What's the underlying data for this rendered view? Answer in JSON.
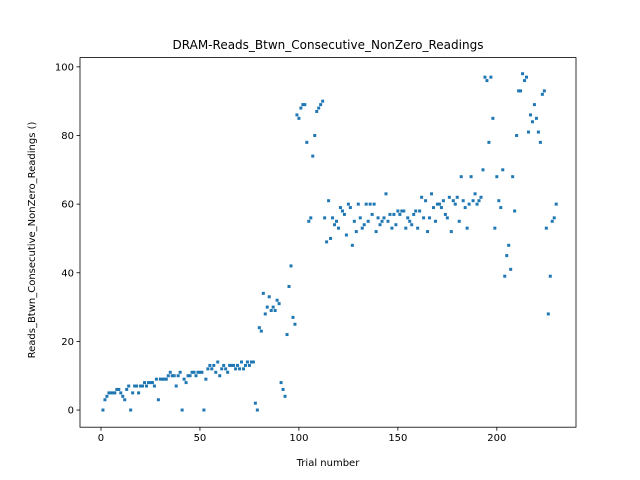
{
  "chart_data": {
    "type": "scatter",
    "title": "DRAM-Reads_Btwn_Consecutive_NonZero_Readings",
    "x_label": "Trial number",
    "y_label": "Reads_Btwn_Consecutive_NonZero_Readings ()",
    "color": "#1f77b4",
    "x": [
      1,
      2,
      3,
      4,
      5,
      6,
      7,
      8,
      9,
      10,
      11,
      12,
      13,
      14,
      15,
      16,
      17,
      18,
      19,
      20,
      21,
      22,
      23,
      24,
      25,
      26,
      27,
      28,
      29,
      30,
      31,
      32,
      33,
      34,
      35,
      36,
      37,
      38,
      39,
      40,
      41,
      42,
      43,
      44,
      45,
      46,
      47,
      48,
      49,
      50,
      51,
      52,
      53,
      54,
      55,
      56,
      57,
      58,
      59,
      60,
      61,
      62,
      63,
      64,
      65,
      66,
      67,
      68,
      69,
      70,
      71,
      72,
      73,
      74,
      75,
      76,
      77,
      78,
      79,
      80,
      81,
      82,
      83,
      84,
      85,
      86,
      87,
      88,
      89,
      90,
      91,
      92,
      93,
      94,
      95,
      96,
      97,
      98,
      99,
      100,
      101,
      102,
      103,
      104,
      105,
      106,
      107,
      108,
      109,
      110,
      111,
      112,
      113,
      114,
      115,
      116,
      117,
      118,
      119,
      120,
      121,
      122,
      123,
      124,
      125,
      126,
      127,
      128,
      129,
      130,
      131,
      132,
      133,
      134,
      135,
      136,
      137,
      138,
      139,
      140,
      141,
      142,
      143,
      144,
      145,
      146,
      147,
      148,
      149,
      150,
      151,
      152,
      153,
      154,
      155,
      156,
      157,
      158,
      159,
      160,
      161,
      162,
      163,
      164,
      165,
      166,
      167,
      168,
      169,
      170,
      171,
      172,
      173,
      174,
      175,
      176,
      177,
      178,
      179,
      180,
      181,
      182,
      183,
      184,
      185,
      186,
      187,
      188,
      189,
      190,
      191,
      192,
      193,
      194,
      195,
      196,
      197,
      198,
      199,
      200,
      201,
      202,
      203,
      204,
      205,
      206,
      207,
      208,
      209,
      210,
      211,
      212,
      213,
      214,
      215,
      216,
      217,
      218,
      219,
      220,
      221,
      222,
      223,
      224,
      225,
      226,
      227,
      228,
      229,
      230
    ],
    "values": [
      0,
      3,
      4,
      5,
      5,
      5,
      5,
      6,
      6,
      5,
      4,
      3,
      6,
      7,
      0,
      5,
      7,
      7,
      5,
      7,
      7,
      8,
      7,
      8,
      8,
      8,
      7,
      9,
      3,
      9,
      9,
      9,
      9,
      10,
      11,
      10,
      10,
      7,
      10,
      11,
      0,
      9,
      8,
      10,
      10,
      11,
      11,
      10,
      11,
      11,
      11,
      0,
      9,
      12,
      13,
      12,
      13,
      11,
      14,
      10,
      12,
      13,
      12,
      11,
      13,
      13,
      13,
      12,
      13,
      12,
      14,
      12,
      13,
      14,
      13,
      14,
      14,
      2,
      0,
      24,
      23,
      34,
      28,
      30,
      33,
      29,
      30,
      29,
      32,
      31,
      8,
      6,
      4,
      22,
      36,
      42,
      27,
      25,
      86,
      85,
      88,
      89,
      89,
      78,
      55,
      56,
      74,
      80,
      87,
      88,
      89,
      90,
      56,
      49,
      61,
      50,
      56,
      54,
      55,
      53,
      59,
      58,
      57,
      51,
      60,
      59,
      48,
      55,
      52,
      60,
      56,
      53,
      54,
      60,
      55,
      60,
      57,
      60,
      52,
      56,
      54,
      55,
      56,
      63,
      55,
      57,
      53,
      57,
      54,
      58,
      57,
      58,
      58,
      53,
      56,
      55,
      54,
      57,
      58,
      53,
      58,
      62,
      56,
      61,
      52,
      56,
      63,
      59,
      55,
      60,
      60,
      59,
      61,
      57,
      56,
      62,
      52,
      61,
      60,
      62,
      55,
      68,
      61,
      59,
      53,
      60,
      68,
      61,
      63,
      60,
      61,
      62,
      70,
      97,
      96,
      78,
      97,
      85,
      53,
      68,
      61,
      59,
      70,
      39,
      45,
      48,
      41,
      68,
      58,
      80,
      93,
      93,
      98,
      96,
      97,
      81,
      86,
      84,
      89,
      85,
      81,
      78,
      92,
      93,
      53,
      28,
      39,
      55,
      56,
      60
    ],
    "xlim": [
      -10.6,
      240
    ],
    "ylim": [
      -5,
      102.7
    ],
    "xticks": [
      0,
      50,
      100,
      150,
      200
    ],
    "yticks": [
      0,
      20,
      40,
      60,
      80,
      100
    ]
  }
}
